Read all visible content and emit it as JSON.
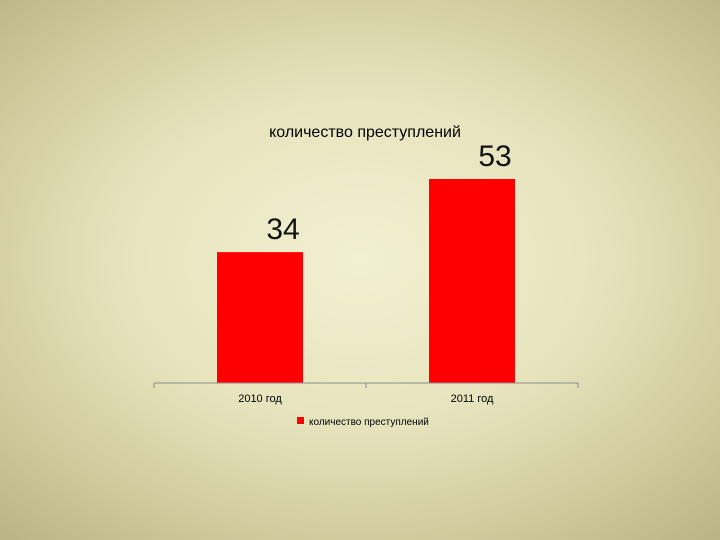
{
  "chart_data": {
    "type": "bar",
    "title": "количество преступлений",
    "categories": [
      "2010 год",
      "2011 год"
    ],
    "series": [
      {
        "name": "количество преступлений",
        "values": [
          34,
          53
        ],
        "color": "#ff0000"
      }
    ],
    "data_labels": [
      "34",
      "53"
    ],
    "ylim": [
      0,
      60
    ],
    "grid": false,
    "legend_position": "bottom"
  }
}
